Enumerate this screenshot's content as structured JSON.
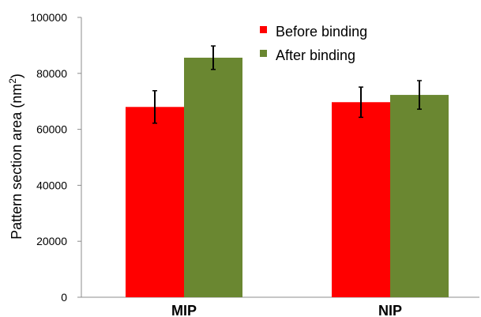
{
  "chart_data": {
    "type": "bar",
    "title": "",
    "xlabel": "",
    "ylabel": "Pattern section area (nm",
    "ylabel_superscript": "2",
    "ylabel_suffix": ")",
    "ylim": [
      0,
      100000
    ],
    "yticks": [
      "0",
      "20000",
      "40000",
      "60000",
      "80000",
      "100000"
    ],
    "ytick_values": [
      0,
      20000,
      40000,
      60000,
      80000,
      100000
    ],
    "categories": [
      "MIP",
      "NIP"
    ],
    "series": [
      {
        "name": "Before binding",
        "color": "#ff0000",
        "values": [
          68000,
          69700
        ],
        "errors": [
          5800,
          5400
        ]
      },
      {
        "name": "After binding",
        "color": "#6a8731",
        "values": [
          85600,
          72300
        ],
        "errors": [
          4200,
          5100
        ]
      }
    ],
    "legend_position": "top-right",
    "grid": false
  }
}
